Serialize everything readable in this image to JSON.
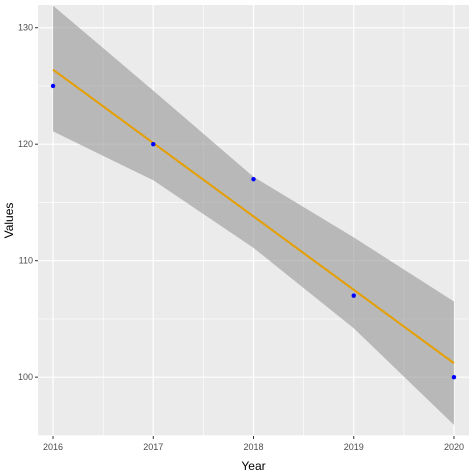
{
  "chart_data": {
    "type": "scatter",
    "title": "",
    "xlabel": "Year",
    "ylabel": "Values",
    "xlim": [
      2015.85,
      2020.15
    ],
    "ylim": [
      94.95,
      131.95
    ],
    "x_ticks": [
      2016,
      2017,
      2018,
      2019,
      2020
    ],
    "y_ticks": [
      100,
      110,
      120,
      130
    ],
    "grid": true,
    "legend": "none",
    "points": {
      "x": [
        2016,
        2017,
        2018,
        2019,
        2020
      ],
      "y": [
        125,
        120,
        117,
        107,
        100
      ]
    },
    "fit_line": {
      "method": "linear",
      "x": [
        2016,
        2020
      ],
      "y": [
        126.4,
        101.2
      ]
    },
    "confidence_band": {
      "x": [
        2016,
        2017,
        2018,
        2019,
        2020
      ],
      "lower": [
        121.1,
        116.9,
        111.1,
        104.2,
        95.9
      ],
      "upper": [
        131.9,
        124.6,
        117.2,
        112.0,
        106.5
      ]
    },
    "colors": {
      "panel": "#ebebeb",
      "grid": "#ffffff",
      "points": "#0000ff",
      "line": "#e69f00",
      "band": "#999999"
    }
  }
}
